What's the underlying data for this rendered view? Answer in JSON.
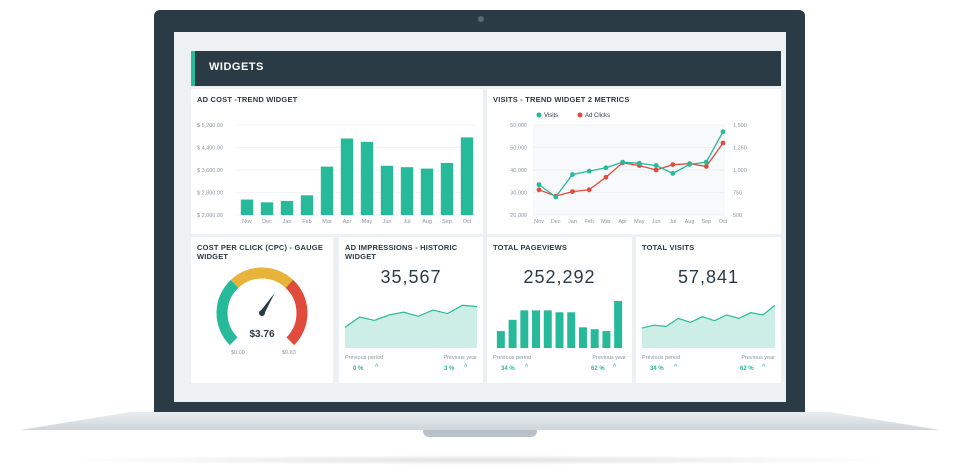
{
  "header": {
    "title": "WIDGETS"
  },
  "ad_cost": {
    "title": "AD COST -TREND WIDGET",
    "yticks": [
      "$ 5,200.00",
      "$ 4,400.00",
      "$ 3,600.00",
      "$ 2,800.00",
      "$ 2,000.00"
    ],
    "months": [
      "Nov",
      "Dec",
      "Jan",
      "Feb",
      "Mar",
      "Apr",
      "May",
      "Jun",
      "Jul",
      "Aug",
      "Sep",
      "Oct"
    ]
  },
  "visits": {
    "title": "VISITS - TREND WIDGET 2 METRICS",
    "legend": [
      "Visits",
      "Ad Clicks"
    ],
    "yleft": [
      "60,000",
      "50,000",
      "40,000",
      "30,000",
      "20,000"
    ],
    "yright": [
      "1,500",
      "1,250",
      "1,000",
      "750",
      "500"
    ],
    "months": [
      "Nov",
      "Dec",
      "Jan",
      "Feb",
      "Mar",
      "Apr",
      "May",
      "Jun",
      "Jul",
      "Aug",
      "Sep",
      "Oct"
    ]
  },
  "cpc": {
    "title": "COST PER CLICK (CPC) - GAUGE WIDGET",
    "value": "$3.76",
    "min": "$0.00",
    "max": "$0.63",
    "level": 0.62
  },
  "impressions": {
    "title": "AD IMPRESSIONS - HISTORIC WIDGET",
    "value": "35,567",
    "prev_label": "Previous period",
    "prev_pct": "0 %",
    "year_label": "Previous year",
    "year_pct": "3 %"
  },
  "pageviews": {
    "title": "TOTAL PAGEVIEWS",
    "value": "252,292",
    "prev_label": "Previous period",
    "prev_pct": "34 %",
    "year_label": "Previous year",
    "year_pct": "62 %"
  },
  "total_visits": {
    "title": "TOTAL VISITS",
    "value": "57,841",
    "prev_label": "Previous period",
    "prev_pct": "34 %",
    "year_label": "Previous year",
    "year_pct": "62 %"
  },
  "colors": {
    "teal": "#26b99a",
    "red": "#e04b3c",
    "dark": "#2b3b45",
    "yellow": "#e8b339"
  },
  "chart_data": [
    {
      "type": "bar",
      "title": "AD COST -TREND WIDGET",
      "categories": [
        "Nov",
        "Dec",
        "Jan",
        "Feb",
        "Mar",
        "Apr",
        "May",
        "Jun",
        "Jul",
        "Aug",
        "Sep",
        "Oct"
      ],
      "values": [
        2550,
        2450,
        2500,
        2700,
        3720,
        4720,
        4600,
        3750,
        3700,
        3650,
        3850,
        4760
      ],
      "ylim": [
        2000,
        5200
      ]
    },
    {
      "type": "line",
      "title": "VISITS - TREND WIDGET 2 METRICS",
      "categories": [
        "Nov",
        "Dec",
        "Jan",
        "Feb",
        "Mar",
        "Apr",
        "May",
        "Jun",
        "Jul",
        "Aug",
        "Sep",
        "Oct"
      ],
      "series": [
        {
          "name": "Visits",
          "values": [
            33500,
            28000,
            38000,
            39500,
            41000,
            43500,
            43000,
            42000,
            38500,
            42500,
            43500,
            57000
          ]
        },
        {
          "name": "Ad Clicks",
          "values": [
            780,
            710,
            760,
            780,
            920,
            1080,
            1050,
            1000,
            1060,
            1070,
            1040,
            1300
          ]
        }
      ],
      "ylim_left": [
        20000,
        60000
      ],
      "ylim_right": [
        500,
        1500
      ]
    },
    {
      "type": "area",
      "title": "AD IMPRESSIONS - HISTORIC WIDGET",
      "values": [
        30,
        45,
        40,
        48,
        52,
        46,
        55,
        50,
        62,
        60
      ]
    },
    {
      "type": "bar",
      "title": "TOTAL PAGEVIEWS",
      "values": [
        18,
        30,
        40,
        40,
        40,
        38,
        38,
        22,
        20,
        18,
        50
      ]
    },
    {
      "type": "area",
      "title": "TOTAL VISITS",
      "values": [
        35,
        40,
        38,
        52,
        45,
        55,
        48,
        58,
        52,
        62,
        58,
        75
      ]
    }
  ]
}
